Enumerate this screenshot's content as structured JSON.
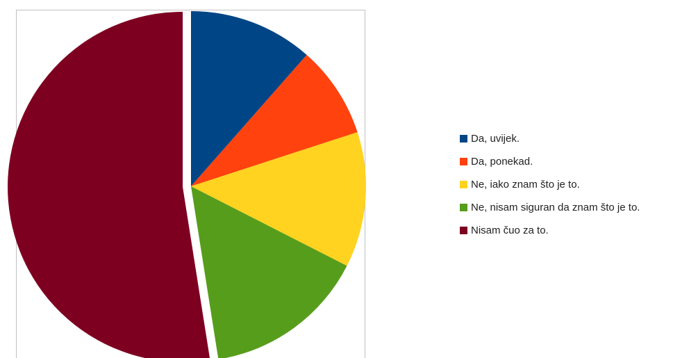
{
  "chart_data": {
    "type": "pie",
    "title": "",
    "legend_position": "right",
    "series": [
      {
        "name": "Da, uvijek.",
        "value": 11.5,
        "color": "#004586"
      },
      {
        "name": "Da, ponekad.",
        "value": 8.5,
        "color": "#ff420e"
      },
      {
        "name": "Ne, iako znam što je to.",
        "value": 12.5,
        "color": "#ffd320"
      },
      {
        "name": "Ne, nisam siguran da znam što je to.",
        "value": 15.0,
        "color": "#579d1c"
      },
      {
        "name": "Nisam čuo za to.",
        "value": 52.5,
        "color": "#7e0021",
        "exploded": true
      }
    ]
  }
}
